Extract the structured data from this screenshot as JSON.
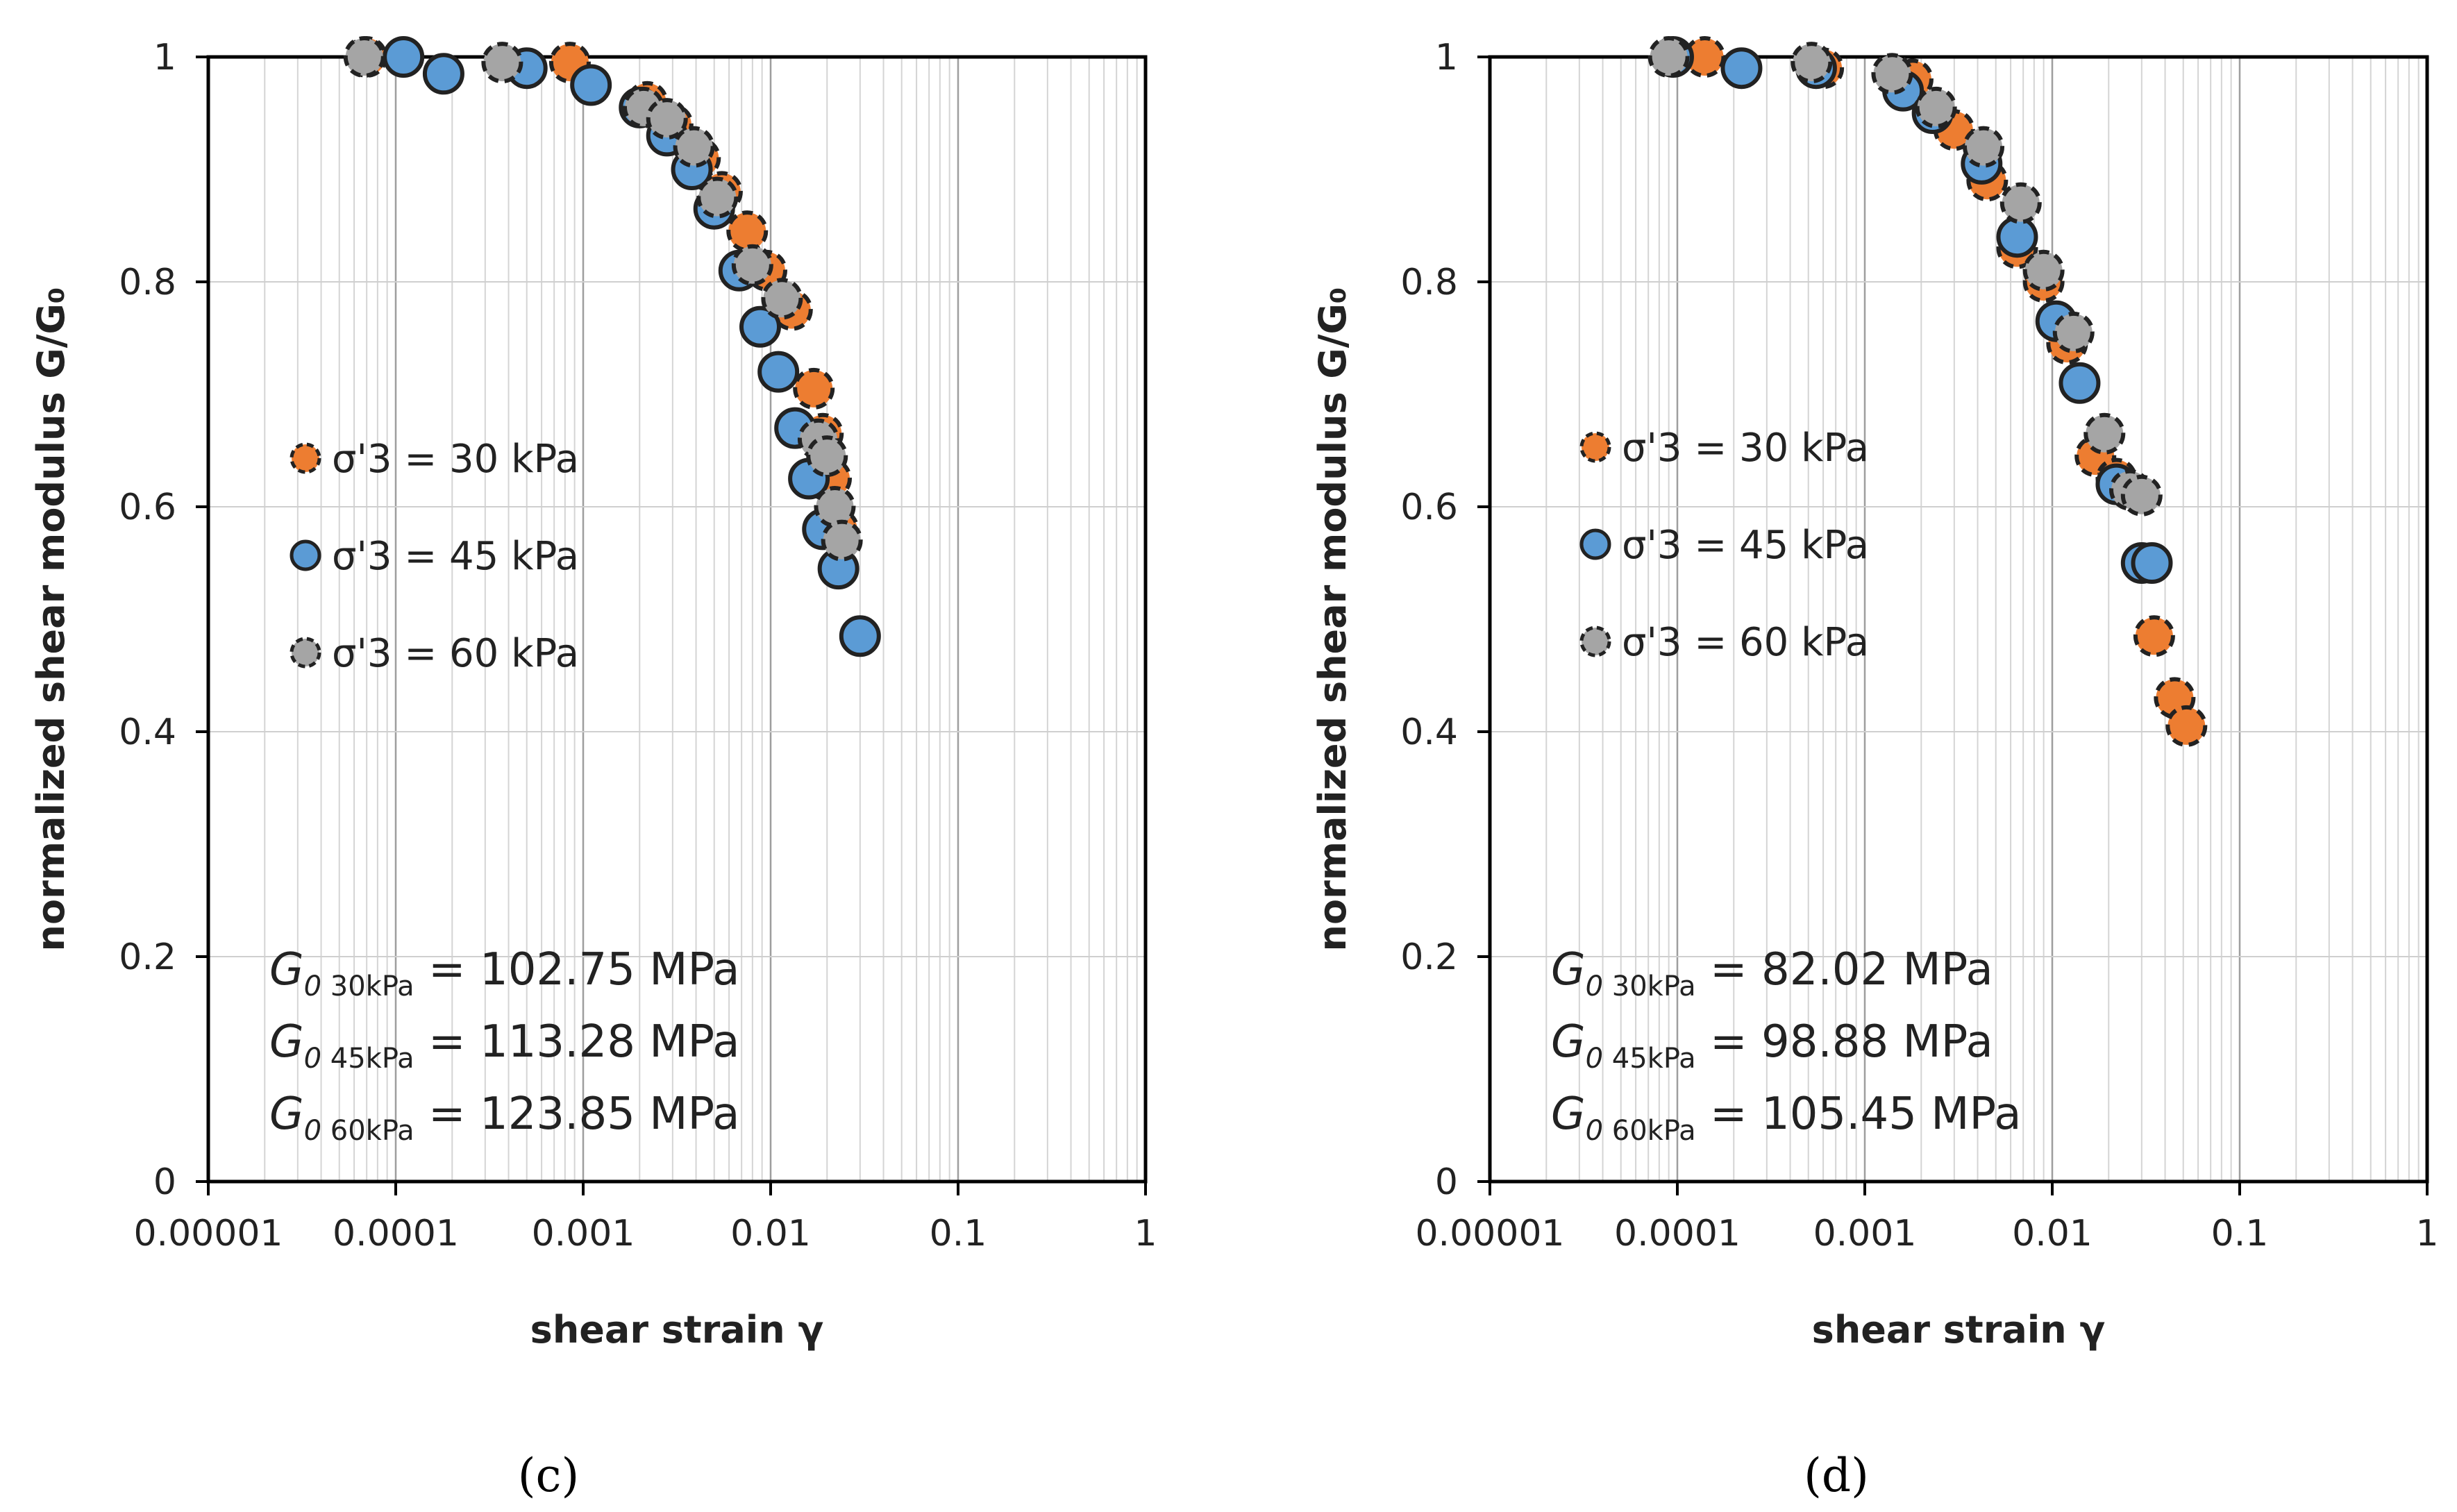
{
  "series_styles": {
    "s30": {
      "fill": "#ED7D31",
      "stroke": "#222222",
      "dash": true
    },
    "s45": {
      "fill": "#5B9BD5",
      "stroke": "#222222",
      "dash": false
    },
    "s60": {
      "fill": "#A5A5A5",
      "stroke": "#222222",
      "dash": true
    }
  },
  "chart_data": [
    {
      "type": "scatter",
      "panel_label": "(c)",
      "xlabel": "shear strain γ",
      "ylabel": "normalized shear modulus G/G₀",
      "xscale": "log",
      "xlim": [
        1e-05,
        1
      ],
      "ylim": [
        0,
        1
      ],
      "x_ticks": [
        "0.00001",
        "0.0001",
        "0.001",
        "0.01",
        "0.1",
        "1"
      ],
      "y_ticks": [
        "0",
        "0.2",
        "0.4",
        "0.6",
        "0.8",
        "1"
      ],
      "grid": true,
      "legend": [
        {
          "key": "s30",
          "label": "σ'3 = 30 kPa"
        },
        {
          "key": "s45",
          "label": "σ'3 = 45 kPa"
        },
        {
          "key": "s60",
          "label": "σ'3 = 60 kPa"
        }
      ],
      "annotations": [
        {
          "g": "G",
          "sub0": "0",
          "sub": "30kPa",
          "value": " = 102.75 MPa"
        },
        {
          "g": "G",
          "sub0": "0",
          "sub": "45kPa",
          "value": " = 113.28 MPa"
        },
        {
          "g": "G",
          "sub0": "0",
          "sub": "60kPa",
          "value": " = 123.85 MPa"
        }
      ],
      "series": [
        {
          "key": "s30",
          "name": "σ'3 = 30 kPa",
          "x": [
            7e-05,
            0.00085,
            0.0022,
            0.003,
            0.0042,
            0.0055,
            0.0075,
            0.0095,
            0.013,
            0.017,
            0.019,
            0.021,
            0.023
          ],
          "y": [
            1.0,
            0.995,
            0.96,
            0.94,
            0.91,
            0.88,
            0.845,
            0.81,
            0.775,
            0.705,
            0.665,
            0.625,
            0.58
          ]
        },
        {
          "key": "s45",
          "name": "σ'3 = 45 kPa",
          "x": [
            0.00011,
            0.00018,
            0.0005,
            0.0011,
            0.002,
            0.0028,
            0.0038,
            0.005,
            0.0068,
            0.0088,
            0.011,
            0.0135,
            0.016,
            0.019,
            0.023,
            0.03
          ],
          "y": [
            1.0,
            0.985,
            0.99,
            0.975,
            0.955,
            0.93,
            0.9,
            0.865,
            0.81,
            0.76,
            0.72,
            0.67,
            0.625,
            0.58,
            0.545,
            0.485
          ]
        },
        {
          "key": "s60",
          "name": "σ'3 = 60 kPa",
          "x": [
            6.8e-05,
            0.00037,
            0.0021,
            0.0028,
            0.0039,
            0.0052,
            0.008,
            0.0115,
            0.018,
            0.02,
            0.022,
            0.024
          ],
          "y": [
            1.0,
            0.995,
            0.955,
            0.945,
            0.92,
            0.875,
            0.815,
            0.785,
            0.66,
            0.645,
            0.6,
            0.57
          ]
        }
      ]
    },
    {
      "type": "scatter",
      "panel_label": "(d)",
      "xlabel": "shear strain γ",
      "ylabel": "normalized shear modulus G/G₀",
      "xscale": "log",
      "xlim": [
        1e-05,
        1
      ],
      "ylim": [
        0,
        1
      ],
      "x_ticks": [
        "0.00001",
        "0.0001",
        "0.001",
        "0.01",
        "0.1",
        "1"
      ],
      "y_ticks": [
        "0",
        "0.2",
        "0.4",
        "0.6",
        "0.8",
        "1"
      ],
      "grid": true,
      "legend": [
        {
          "key": "s30",
          "label": "σ'3 = 30 kPa"
        },
        {
          "key": "s45",
          "label": "σ'3 = 45 kPa"
        },
        {
          "key": "s60",
          "label": "σ'3 = 60 kPa"
        }
      ],
      "annotations": [
        {
          "g": "G",
          "sub0": "0",
          "sub": "30kPa",
          "value": " = 82.02 MPa"
        },
        {
          "g": "G",
          "sub0": "0",
          "sub": "45kPa",
          "value": " = 98.88 MPa"
        },
        {
          "g": "G",
          "sub0": "0",
          "sub": "60kPa",
          "value": " = 105.45 MPa"
        }
      ],
      "series": [
        {
          "key": "s30",
          "name": "σ'3 = 30 kPa",
          "x": [
            0.00014,
            0.0006,
            0.0018,
            0.003,
            0.0045,
            0.0065,
            0.009,
            0.012,
            0.017,
            0.022,
            0.035,
            0.045,
            0.052
          ],
          "y": [
            1.0,
            0.99,
            0.98,
            0.935,
            0.89,
            0.83,
            0.8,
            0.745,
            0.645,
            0.625,
            0.485,
            0.43,
            0.405
          ]
        },
        {
          "key": "s45",
          "name": "σ'3 = 45 kPa",
          "x": [
            9.5e-05,
            0.00022,
            0.00055,
            0.0016,
            0.0023,
            0.0042,
            0.0065,
            0.0105,
            0.014,
            0.022,
            0.03,
            0.034
          ],
          "y": [
            1.0,
            0.99,
            0.99,
            0.97,
            0.95,
            0.905,
            0.84,
            0.765,
            0.71,
            0.62,
            0.55,
            0.55
          ]
        },
        {
          "key": "s60",
          "name": "σ'3 = 60 kPa",
          "x": [
            9e-05,
            0.00052,
            0.0014,
            0.0024,
            0.0043,
            0.0068,
            0.009,
            0.013,
            0.019,
            0.026,
            0.03
          ],
          "y": [
            1.0,
            0.995,
            0.985,
            0.955,
            0.92,
            0.87,
            0.81,
            0.755,
            0.665,
            0.615,
            0.61
          ]
        }
      ]
    }
  ]
}
